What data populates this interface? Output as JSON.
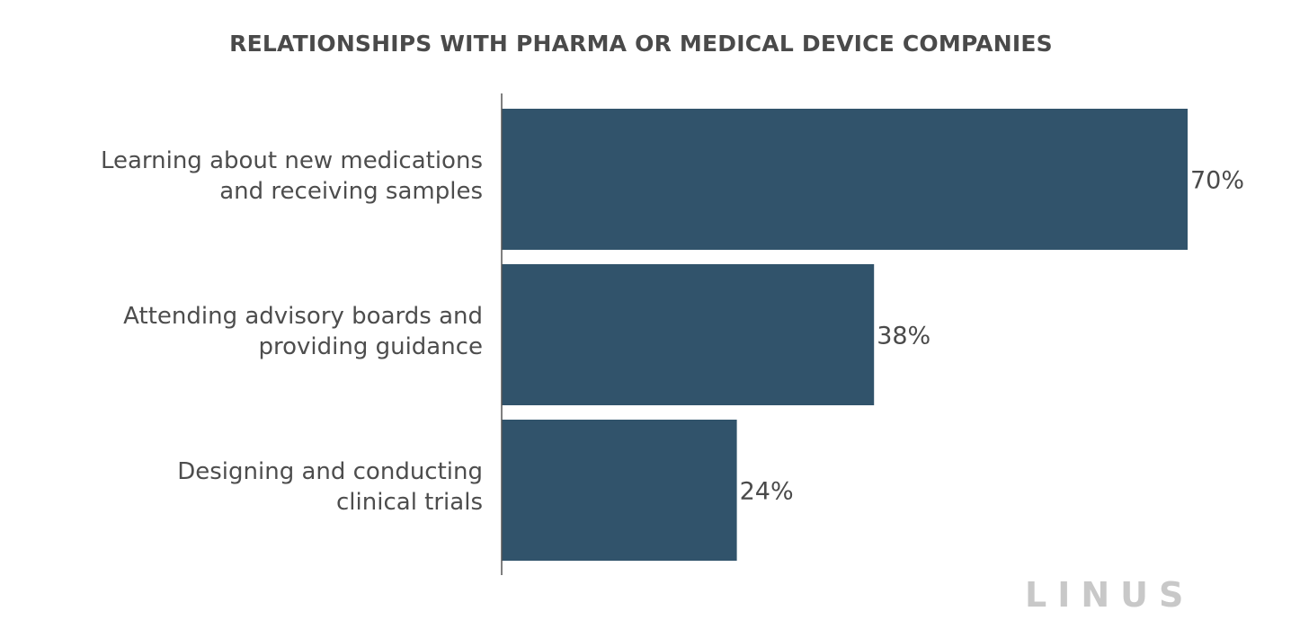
{
  "chart_data": {
    "type": "bar",
    "orientation": "horizontal",
    "title": "RELATIONSHIPS WITH PHARMA OR MEDICAL DEVICE COMPANIES",
    "categories": [
      [
        "Learning about new medications",
        "and receiving samples"
      ],
      [
        "Attending advisory boards and",
        "providing guidance"
      ],
      [
        "Designing and conducting",
        "clinical trials"
      ]
    ],
    "values": [
      70,
      38,
      24
    ],
    "value_labels": [
      "70%",
      "38%",
      "24%"
    ],
    "xlim": [
      0,
      70
    ],
    "bar_color": "#31536b",
    "grid": false,
    "legend": "none"
  },
  "branding": {
    "logo_text": "LINUS",
    "logo_color": "#c8c8c8"
  }
}
